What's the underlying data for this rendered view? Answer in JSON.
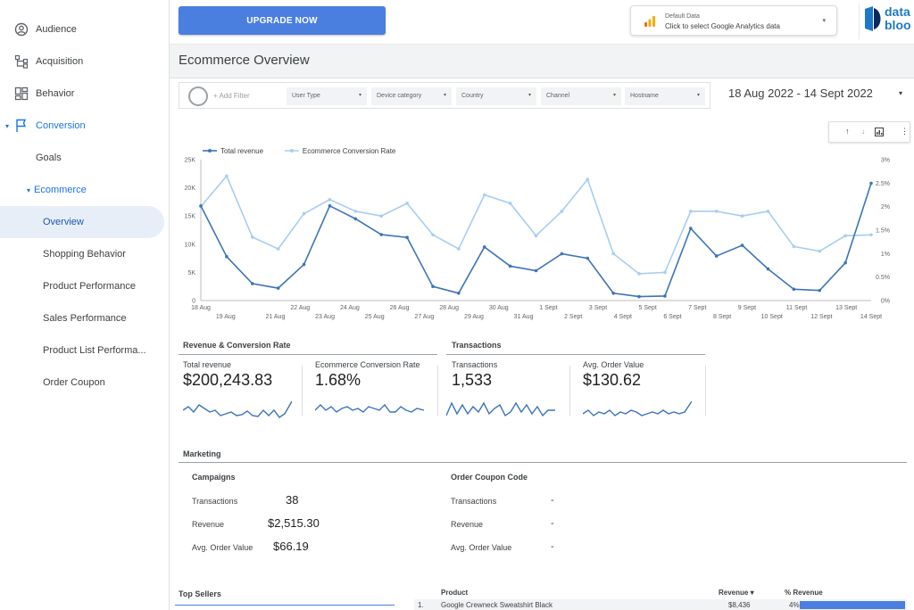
{
  "sidebar": {
    "items": [
      {
        "label": "Audience",
        "icon": "account-circle-icon"
      },
      {
        "label": "Acquisition",
        "icon": "hierarchy-icon"
      },
      {
        "label": "Behavior",
        "icon": "dashboard-icon"
      },
      {
        "label": "Conversion",
        "icon": "flag-icon"
      },
      {
        "label": "Goals"
      },
      {
        "label": "Ecommerce"
      },
      {
        "label": "Overview"
      },
      {
        "label": "Shopping Behavior"
      },
      {
        "label": "Product Performance"
      },
      {
        "label": "Sales Performance"
      },
      {
        "label": "Product List Performa..."
      },
      {
        "label": "Order Coupon"
      }
    ]
  },
  "topbar": {
    "upgrade_label": "UPGRADE NOW",
    "datasource_label": "Default Data",
    "datasource_desc": "Click to select Google Analytics data",
    "logo_text_1": "data",
    "logo_text_2": "bloo"
  },
  "page": {
    "title": "Ecommerce Overview",
    "add_filter": "+ Add Filter",
    "dropdowns": [
      "User Type",
      "Device category",
      "Country",
      "Channel",
      "Hostname"
    ],
    "date_range": "18 Aug 2022 - 14 Sept 2022"
  },
  "chart_data": {
    "type": "line",
    "series": [
      {
        "name": "Total revenue",
        "axis": "left",
        "color": "#3d74b8",
        "values": [
          16800,
          7800,
          3000,
          2200,
          6400,
          16800,
          14500,
          11700,
          11200,
          2500,
          1300,
          9500,
          6100,
          5300,
          8300,
          7500,
          1300,
          700,
          800,
          12800,
          7900,
          9800,
          5600,
          2000,
          1800,
          6700,
          20800
        ]
      },
      {
        "name": "Ecommerce Conversion Rate",
        "axis": "right",
        "color": "#a8cdef",
        "values": [
          2.0,
          2.65,
          1.35,
          1.1,
          1.85,
          2.15,
          1.9,
          1.8,
          2.07,
          1.4,
          1.1,
          2.25,
          2.07,
          1.38,
          1.9,
          2.58,
          1.0,
          0.57,
          0.6,
          1.9,
          1.9,
          1.8,
          1.9,
          1.15,
          1.05,
          1.38,
          1.4
        ]
      }
    ],
    "x_top": [
      "18 Aug",
      "22 Aug",
      "24 Aug",
      "26 Aug",
      "28 Aug",
      "30 Aug",
      "1 Sept",
      "3 Sept",
      "5 Sept",
      "7 Sept",
      "9 Sept",
      "11 Sept",
      "13 Sept"
    ],
    "x_bottom": [
      "19 Aug",
      "21 Aug",
      "23 Aug",
      "25 Aug",
      "27 Aug",
      "29 Aug",
      "31 Aug",
      "2 Sept",
      "4 Sept",
      "6 Sept",
      "8 Sept",
      "10 Sept",
      "12 Sept",
      "14 Sept"
    ],
    "y_left_ticks": [
      "0",
      "5K",
      "10K",
      "15K",
      "20K",
      "25K"
    ],
    "y_right_ticks": [
      "0%",
      "0.5%",
      "1%",
      "1.5%",
      "2%",
      "2.5%",
      "3%"
    ],
    "y_left_max": 25000,
    "y_right_max": 3,
    "legend_position": "top-left"
  },
  "scorecards": {
    "group1_title": "Revenue & Conversion Rate",
    "group2_title": "Transactions",
    "cards": [
      {
        "label": "Total revenue",
        "value": "$200,243.83"
      },
      {
        "label": "Ecommerce Conversion Rate",
        "value": "1.68%"
      },
      {
        "label": "Transactions",
        "value": "1,533"
      },
      {
        "label": "Avg. Order Value",
        "value": "$130.62"
      }
    ]
  },
  "marketing": {
    "title": "Marketing",
    "campaigns_title": "Campaigns",
    "coupon_title": "Order Coupon Code",
    "campaigns": [
      {
        "label": "Transactions",
        "value": "38"
      },
      {
        "label": "Revenue",
        "value": "$2,515.30"
      },
      {
        "label": "Avg. Order Value",
        "value": "$66.19"
      }
    ],
    "coupon": [
      {
        "label": "Transactions",
        "value": "-"
      },
      {
        "label": "Revenue",
        "value": "-"
      },
      {
        "label": "Avg. Order Value",
        "value": "-"
      }
    ]
  },
  "bottom": {
    "top_sellers": "Top Sellers",
    "col_product": "Product",
    "col_revenue": "Revenue ▾",
    "col_pct": "% Revenue",
    "row_index": "1.",
    "row_product": "Google Crewneck Sweatshirt Black",
    "row_revenue": "$8,436",
    "row_pct": "4%",
    "row_pct_value": 0.04
  }
}
